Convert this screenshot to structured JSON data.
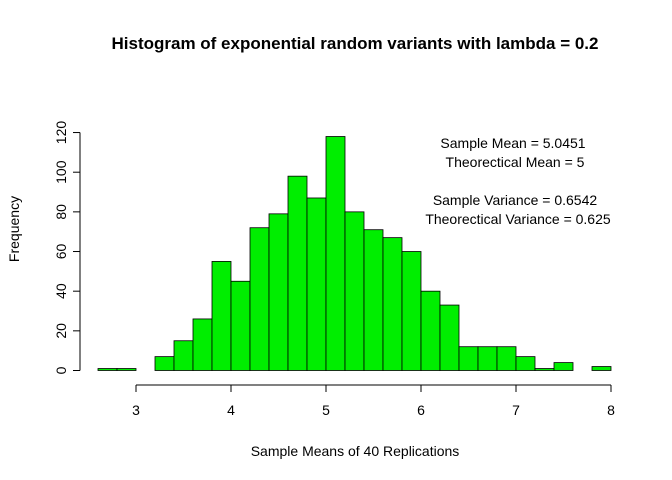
{
  "chart_data": {
    "type": "bar",
    "title": "Histogram of exponential random variants with lambda = 0.2",
    "xlabel": "Sample Means of 40 Replications",
    "ylabel": "Frequency",
    "bar_color": "#00ee00",
    "bin_width": 0.2,
    "bins": [
      {
        "start": 2.6,
        "end": 2.8,
        "count": 1
      },
      {
        "start": 2.8,
        "end": 3.0,
        "count": 1
      },
      {
        "start": 3.0,
        "end": 3.2,
        "count": 0
      },
      {
        "start": 3.2,
        "end": 3.4,
        "count": 7
      },
      {
        "start": 3.4,
        "end": 3.6,
        "count": 15
      },
      {
        "start": 3.6,
        "end": 3.8,
        "count": 26
      },
      {
        "start": 3.8,
        "end": 4.0,
        "count": 55
      },
      {
        "start": 4.0,
        "end": 4.2,
        "count": 45
      },
      {
        "start": 4.2,
        "end": 4.4,
        "count": 72
      },
      {
        "start": 4.4,
        "end": 4.6,
        "count": 79
      },
      {
        "start": 4.6,
        "end": 4.8,
        "count": 98
      },
      {
        "start": 4.8,
        "end": 5.0,
        "count": 87
      },
      {
        "start": 5.0,
        "end": 5.2,
        "count": 118
      },
      {
        "start": 5.2,
        "end": 5.4,
        "count": 80
      },
      {
        "start": 5.4,
        "end": 5.6,
        "count": 71
      },
      {
        "start": 5.6,
        "end": 5.8,
        "count": 67
      },
      {
        "start": 5.8,
        "end": 6.0,
        "count": 60
      },
      {
        "start": 6.0,
        "end": 6.2,
        "count": 40
      },
      {
        "start": 6.2,
        "end": 6.4,
        "count": 33
      },
      {
        "start": 6.4,
        "end": 6.6,
        "count": 12
      },
      {
        "start": 6.6,
        "end": 6.8,
        "count": 12
      },
      {
        "start": 6.8,
        "end": 7.0,
        "count": 12
      },
      {
        "start": 7.0,
        "end": 7.2,
        "count": 7
      },
      {
        "start": 7.2,
        "end": 7.4,
        "count": 1
      },
      {
        "start": 7.4,
        "end": 7.6,
        "count": 4
      },
      {
        "start": 7.6,
        "end": 7.8,
        "count": 0
      },
      {
        "start": 7.8,
        "end": 8.0,
        "count": 2
      }
    ],
    "x_ticks": [
      "3",
      "4",
      "5",
      "6",
      "7",
      "8"
    ],
    "y_ticks": [
      "0",
      "20",
      "40",
      "60",
      "80",
      "100",
      "120"
    ],
    "xlim": [
      2.6,
      8.0
    ],
    "ylim": [
      0,
      120
    ],
    "grid": false,
    "annotations": {
      "sample_mean": "Sample Mean =  5.0451",
      "theoretical_mean": "Theorectical Mean = 5",
      "sample_variance": "Sample Variance =  0.6542",
      "theoretical_variance": "Theorectical Variance = 0.625"
    }
  }
}
